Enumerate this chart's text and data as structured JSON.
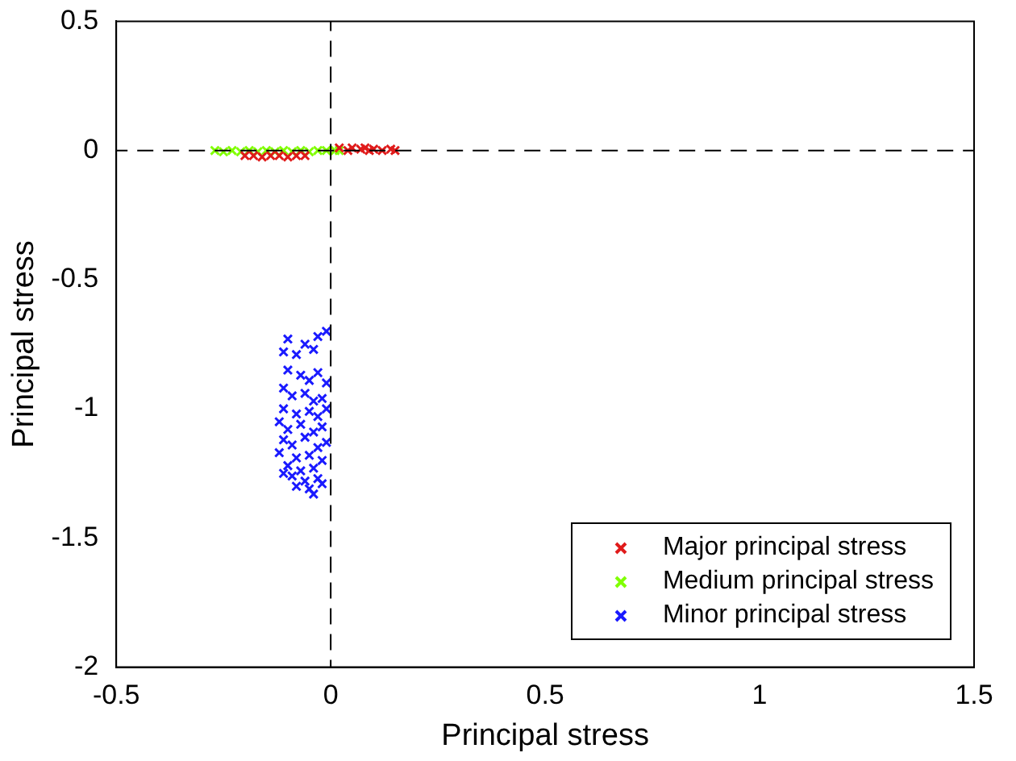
{
  "chart_data": {
    "type": "scatter",
    "xlabel": "Principal stress",
    "ylabel": "Principal stress",
    "xlim": [
      -0.5,
      1.5
    ],
    "xticks": [
      -0.5,
      0,
      0.5,
      1,
      1.5
    ],
    "ylim": [
      -2,
      0.5
    ],
    "yticks": [
      -2,
      -1.5,
      -1,
      -0.5,
      0,
      0.5
    ],
    "grid": false,
    "legend": "bottom right",
    "marker": "cross",
    "ref_lines": [
      {
        "axis": "x",
        "value": 0,
        "line_style": "dashed",
        "color": "#000000"
      },
      {
        "axis": "y",
        "value": 0,
        "line_style": "dashed",
        "color": "#000000"
      }
    ],
    "series": [
      {
        "name": "Major principal stress",
        "color": "#e01b1b",
        "x": [
          -0.2,
          -0.18,
          -0.16,
          -0.14,
          -0.12,
          -0.1,
          -0.08,
          -0.06,
          0.02,
          0.04,
          0.05,
          0.07,
          0.08,
          0.09,
          0.1,
          0.12,
          0.14,
          0.15
        ],
        "values": [
          -0.02,
          -0.02,
          -0.025,
          -0.02,
          -0.02,
          -0.025,
          -0.02,
          -0.02,
          0.01,
          0,
          0.01,
          0.005,
          0.01,
          0,
          0.005,
          0,
          0.005,
          0
        ]
      },
      {
        "name": "Medium principal stress",
        "color": "#80ff00",
        "x": [
          -0.27,
          -0.25,
          -0.23,
          -0.21,
          -0.19,
          -0.17,
          -0.15,
          -0.13,
          -0.11,
          -0.09,
          -0.07,
          -0.05,
          -0.03,
          -0.01,
          0.01,
          0.02
        ],
        "values": [
          0,
          -0.005,
          0,
          -0.005,
          0,
          -0.005,
          0,
          -0.005,
          0,
          -0.005,
          0,
          -0.005,
          0,
          0,
          0,
          0
        ]
      },
      {
        "name": "Minor principal stress",
        "color": "#1a1aff",
        "x": [
          -0.01,
          -0.03,
          -0.1,
          -0.06,
          -0.11,
          -0.08,
          -0.04,
          -0.1,
          -0.07,
          -0.03,
          -0.05,
          -0.01,
          -0.11,
          -0.09,
          -0.06,
          -0.04,
          -0.02,
          -0.11,
          -0.08,
          -0.05,
          -0.03,
          -0.01,
          -0.12,
          -0.1,
          -0.07,
          -0.04,
          -0.02,
          -0.11,
          -0.09,
          -0.06,
          -0.03,
          -0.01,
          -0.12,
          -0.08,
          -0.05,
          -0.02,
          -0.1,
          -0.07,
          -0.04,
          -0.11,
          -0.06,
          -0.03,
          -0.08,
          -0.05,
          -0.04,
          -0.02,
          -0.09
        ],
        "values": [
          -0.7,
          -0.72,
          -0.73,
          -0.75,
          -0.78,
          -0.79,
          -0.77,
          -0.85,
          -0.87,
          -0.86,
          -0.89,
          -0.9,
          -0.92,
          -0.95,
          -0.94,
          -0.97,
          -0.96,
          -1,
          -1.02,
          -1.01,
          -1.03,
          -1,
          -1.05,
          -1.08,
          -1.06,
          -1.09,
          -1.07,
          -1.12,
          -1.14,
          -1.11,
          -1.15,
          -1.13,
          -1.17,
          -1.19,
          -1.18,
          -1.2,
          -1.22,
          -1.24,
          -1.23,
          -1.25,
          -1.28,
          -1.27,
          -1.3,
          -1.31,
          -1.33,
          -1.29,
          -1.26
        ]
      }
    ]
  }
}
